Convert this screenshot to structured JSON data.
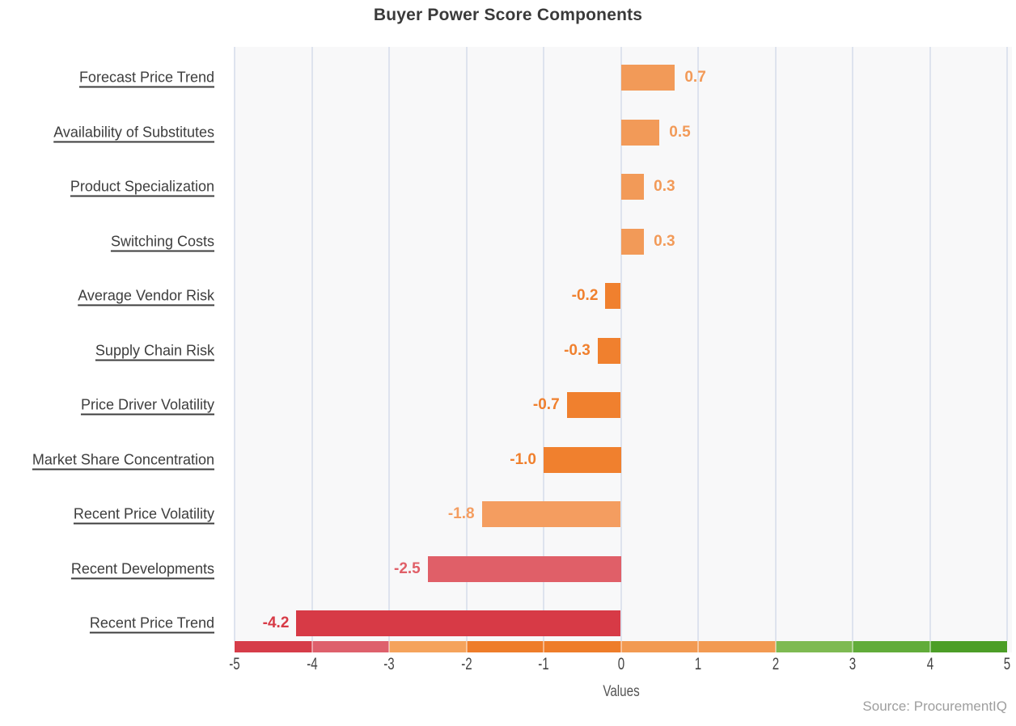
{
  "title": "Buyer Power Score Components",
  "source": {
    "text": "Source: ProcurementIQ"
  },
  "colors": {
    "plot_background": "#f8f8f9",
    "gridline": "#dee3ee",
    "title_text": "#3a3a3a",
    "category_label_text": "#3d3d3d",
    "tick_text": "#454545",
    "source_text": "#9e9e9e"
  },
  "chart_data": {
    "type": "bar",
    "orientation": "horizontal",
    "title": "Buyer Power Score Components",
    "xlabel": "Values",
    "xlim": [
      -5,
      5
    ],
    "x_ticks": [
      "-5",
      "-4",
      "-3",
      "-2",
      "-1",
      "0",
      "1",
      "2",
      "3",
      "4",
      "5"
    ],
    "grid": true,
    "legend": "none",
    "categories": [
      "Forecast Price Trend",
      "Availability of Substitutes",
      "Product Specialization",
      "Switching Costs",
      "Average Vendor Risk",
      "Supply Chain Risk",
      "Price Driver Volatility",
      "Market Share Concentration",
      "Recent Price Volatility",
      "Recent Developments",
      "Recent Price Trend"
    ],
    "values": [
      0.7,
      0.5,
      0.3,
      0.3,
      -0.2,
      -0.3,
      -0.7,
      -1.0,
      -1.8,
      -2.5,
      -4.2
    ],
    "value_labels": [
      "0.7",
      "0.5",
      "0.3",
      "0.3",
      "-0.2",
      "-0.3",
      "-0.7",
      "-1.0",
      "-1.8",
      "-2.5",
      "-4.2"
    ],
    "bar_colors": [
      "#f29a58",
      "#f29a58",
      "#f29a58",
      "#f29a58",
      "#f0802e",
      "#f0802e",
      "#f0802e",
      "#f0802e",
      "#f49d60",
      "#e05f68",
      "#d73a46"
    ],
    "scale_strip": [
      {
        "from": -5,
        "to": -4,
        "color": "#d63d49"
      },
      {
        "from": -4,
        "to": -3,
        "color": "#de606c"
      },
      {
        "from": -3,
        "to": -2,
        "color": "#f5a35c"
      },
      {
        "from": -2,
        "to": 0,
        "color": "#ee7d2a"
      },
      {
        "from": 0,
        "to": 2,
        "color": "#f29a52"
      },
      {
        "from": 2,
        "to": 3,
        "color": "#7eba52"
      },
      {
        "from": 3,
        "to": 4,
        "color": "#61ac3a"
      },
      {
        "from": 4,
        "to": 5,
        "color": "#4c9e27"
      }
    ]
  }
}
